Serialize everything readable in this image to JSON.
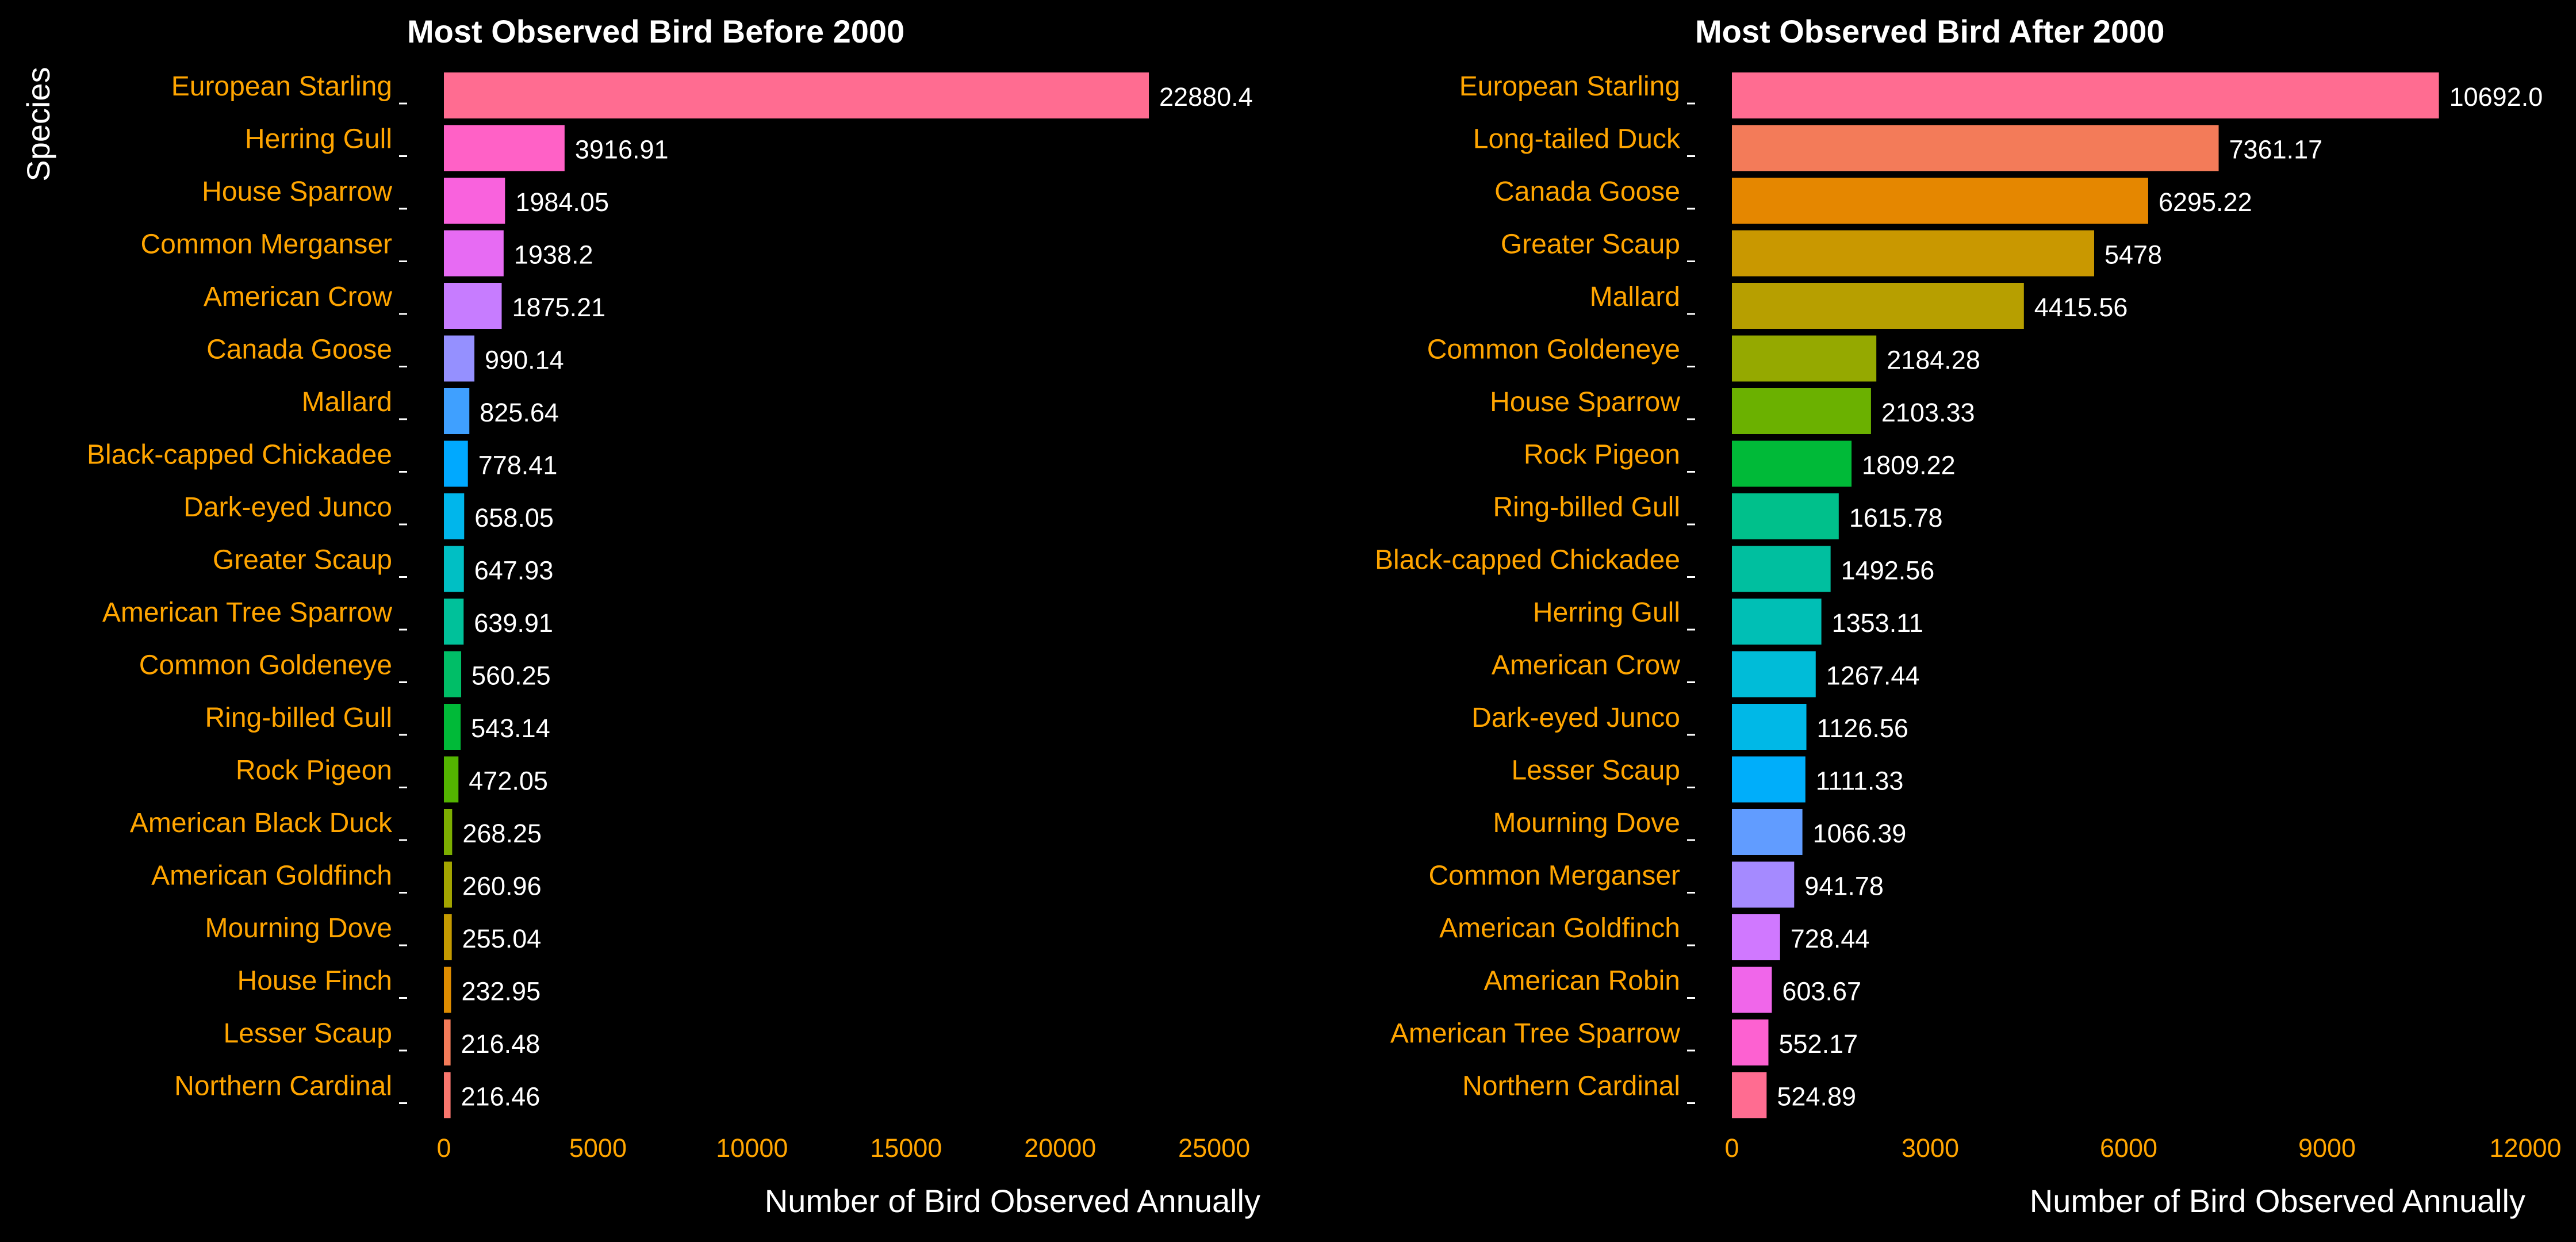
{
  "colors": {
    "background": "#000000",
    "category_text": "#FFA500",
    "tick_text": "#FFA500",
    "value_text": "#FFFFFF",
    "title_text": "#FFFFFF",
    "axis_title_text": "#FFFFFF",
    "tick_mark": "#FFFFFF"
  },
  "ylabel": "Species",
  "chart_data": [
    {
      "type": "bar",
      "orientation": "horizontal",
      "title": "Most Observed Bird Before 2000",
      "xlabel": "Number of Bird Observed Annually",
      "ylabel": "Species",
      "xlim": [
        0,
        26500
      ],
      "xticks": [
        0,
        5000,
        10000,
        15000,
        20000,
        25000
      ],
      "grid": false,
      "categories": [
        "European Starling",
        "Herring Gull",
        "House Sparrow",
        "Common Merganser",
        "American Crow",
        "Canada Goose",
        "Mallard",
        "Black-capped Chickadee",
        "Dark-eyed Junco",
        "Greater Scaup",
        "American Tree Sparrow",
        "Common Goldeneye",
        "Ring-billed Gull",
        "Rock Pigeon",
        "American Black Duck",
        "American Goldfinch",
        "Mourning Dove",
        "House Finch",
        "Lesser Scaup",
        "Northern Cardinal"
      ],
      "values": [
        22880.4,
        3916.91,
        1984.05,
        1938.2,
        1875.21,
        990.14,
        825.64,
        778.41,
        658.05,
        647.93,
        639.91,
        560.25,
        543.14,
        472.05,
        268.25,
        260.96,
        255.04,
        232.95,
        216.48,
        216.46
      ],
      "value_labels": [
        "22880.4",
        "3916.91",
        "1984.05",
        "1938.2",
        "1875.21",
        "990.14",
        "825.64",
        "778.41",
        "658.05",
        "647.93",
        "639.91",
        "560.25",
        "543.14",
        "472.05",
        "268.25",
        "260.96",
        "255.04",
        "232.95",
        "216.48",
        "216.46"
      ],
      "bar_colors": [
        "#FF6C91",
        "#FF61C6",
        "#F962DD",
        "#E76BF3",
        "#C77CFF",
        "#9590FF",
        "#3FA0FF",
        "#00A9FF",
        "#00B6EB",
        "#00BFC4",
        "#00C19A",
        "#00BE67",
        "#00BA38",
        "#53B400",
        "#7CAE00",
        "#A3A500",
        "#C49A00",
        "#DE8C00",
        "#F37B59",
        "#F8766D"
      ]
    },
    {
      "type": "bar",
      "orientation": "horizontal",
      "title": "Most Observed Bird After 2000",
      "xlabel": "Number of Bird Observed Annually",
      "ylabel": "",
      "xlim": [
        0,
        12000
      ],
      "xticks": [
        0,
        3000,
        6000,
        9000,
        12000
      ],
      "grid": false,
      "categories": [
        "European Starling",
        "Long-tailed Duck",
        "Canada Goose",
        "Greater Scaup",
        "Mallard",
        "Common Goldeneye",
        "House Sparrow",
        "Rock Pigeon",
        "Ring-billed Gull",
        "Black-capped Chickadee",
        "Herring Gull",
        "American Crow",
        "Dark-eyed Junco",
        "Lesser Scaup",
        "Mourning Dove",
        "Common Merganser",
        "American Goldfinch",
        "American Robin",
        "American Tree Sparrow",
        "Northern Cardinal"
      ],
      "values": [
        10692.0,
        7361.17,
        6295.22,
        5478,
        4415.56,
        2184.28,
        2103.33,
        1809.22,
        1615.78,
        1492.56,
        1353.11,
        1267.44,
        1126.56,
        1111.33,
        1066.39,
        941.78,
        728.44,
        603.67,
        552.17,
        524.89
      ],
      "value_labels": [
        "10692.0",
        "7361.17",
        "6295.22",
        "5478",
        "4415.56",
        "2184.28",
        "2103.33",
        "1809.22",
        "1615.78",
        "1492.56",
        "1353.11",
        "1267.44",
        "1126.56",
        "1111.33",
        "1066.39",
        "941.78",
        "728.44",
        "603.67",
        "552.17",
        "524.89"
      ],
      "bar_colors": [
        "#FF6C91",
        "#F37B59",
        "#E58700",
        "#C99800",
        "#B79F00",
        "#95A900",
        "#6BB100",
        "#00BA38",
        "#00C08B",
        "#00BF9F",
        "#00BFB5",
        "#00BCD8",
        "#00B8E7",
        "#00AEFA",
        "#619CFF",
        "#A58AFF",
        "#D078FF",
        "#F066EA",
        "#FD61D1",
        "#FF6C91"
      ]
    }
  ]
}
